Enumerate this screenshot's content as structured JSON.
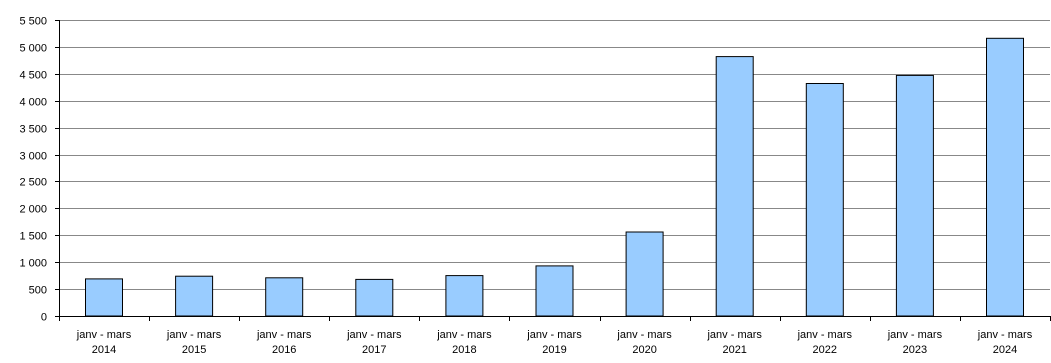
{
  "chart_data": {
    "type": "bar",
    "categories": [
      [
        "janv - mars",
        "2014"
      ],
      [
        "janv - mars",
        "2015"
      ],
      [
        "janv - mars",
        "2016"
      ],
      [
        "janv - mars",
        "2017"
      ],
      [
        "janv - mars",
        "2018"
      ],
      [
        "janv - mars",
        "2019"
      ],
      [
        "janv - mars",
        "2020"
      ],
      [
        "janv - mars",
        "2021"
      ],
      [
        "janv - mars",
        "2022"
      ],
      [
        "janv - mars",
        "2023"
      ],
      [
        "janv - mars",
        "2024"
      ]
    ],
    "values": [
      690,
      740,
      710,
      680,
      750,
      930,
      1560,
      4820,
      4320,
      4470,
      5160
    ],
    "ylim": [
      0,
      5500
    ],
    "yticks": [
      0,
      500,
      1000,
      1500,
      2000,
      2500,
      3000,
      3500,
      4000,
      4500,
      5000,
      5500
    ],
    "ytick_labels": [
      "0",
      "500",
      "1 000",
      "1 500",
      "2 000",
      "2 500",
      "3 000",
      "3 500",
      "4 000",
      "4 500",
      "5 000",
      "5 500"
    ],
    "grid": true,
    "bar_color": "#99CCFF",
    "bar_edge_color": "#000000",
    "grid_color": "#888888"
  }
}
